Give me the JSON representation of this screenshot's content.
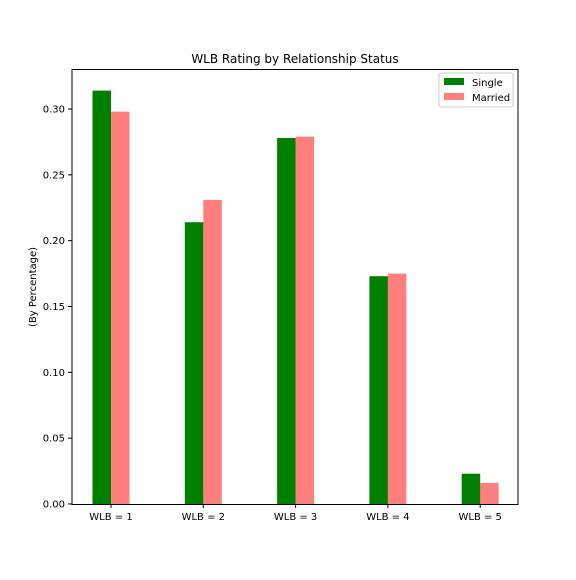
{
  "chart_data": {
    "type": "bar",
    "title": "WLB Rating by Relationship Status",
    "xlabel": "",
    "ylabel": "(By Percentage)",
    "categories": [
      "WLB = 1",
      "WLB = 2",
      "WLB = 3",
      "WLB = 4",
      "WLB = 5"
    ],
    "series": [
      {
        "name": "Single",
        "color": "#008000",
        "values": [
          0.314,
          0.214,
          0.278,
          0.173,
          0.023
        ]
      },
      {
        "name": "Married",
        "color": "#ff0000",
        "opacity": 0.5,
        "values": [
          0.298,
          0.231,
          0.279,
          0.175,
          0.016
        ]
      }
    ],
    "ylim": [
      0,
      0.33
    ],
    "yticks": [
      "0.00",
      "0.05",
      "0.10",
      "0.15",
      "0.20",
      "0.25",
      "0.30"
    ],
    "grid": false,
    "legend_position": "top-right"
  }
}
